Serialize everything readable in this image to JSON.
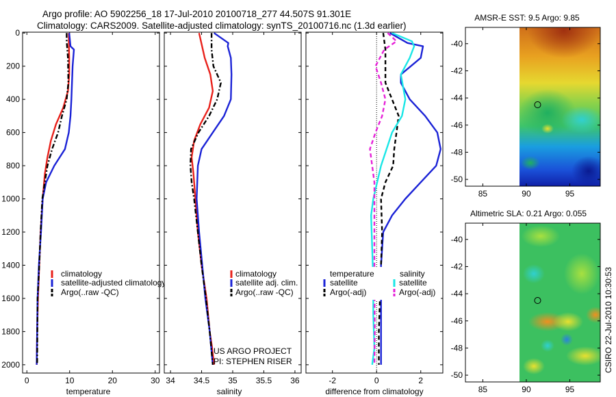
{
  "header": {
    "line1": "Argo profile: AO 5902256_18 17-Jul-2010 20100718_277 44.507S 91.301E",
    "line2": "Climatology: CARS2009. Satellite-adjusted climatology: synTS_20100716.nc (1.3d earlier)"
  },
  "footer": {
    "project": "US ARGO PROJECT",
    "pi": "PI: STEPHEN RISER",
    "stamp": "CSIRO 22-Jul-2010 10:30:53"
  },
  "colors": {
    "climatology": "#e8201a",
    "satellite": "#1a22d6",
    "argo": "#000000",
    "sat_diff_sal": "#19e6e6",
    "argo_diff_sal": "#e620d8"
  },
  "chart_data": [
    {
      "type": "line",
      "id": "temperature",
      "xlabel": "temperature",
      "ylabel": "",
      "xlim": [
        -1,
        31
      ],
      "ylim": [
        2050,
        -5
      ],
      "xticks": [
        0,
        10,
        20,
        30
      ],
      "xtick_labels": [
        "0",
        "10",
        "20",
        "30"
      ],
      "yticks": [
        0,
        200,
        400,
        600,
        800,
        1000,
        1200,
        1400,
        1600,
        1800,
        2000
      ],
      "ytick_labels": [
        "0",
        "200",
        "400",
        "600",
        "800",
        "1000",
        "1200",
        "1400",
        "1600",
        "1800",
        "2000"
      ],
      "legend": [
        "climatology",
        "satellite-adjusted climatology",
        "Argo(..raw -QC)"
      ],
      "series": [
        {
          "name": "climatology",
          "style": "solid",
          "x": [
            9.8,
            9.8,
            9.9,
            9.9,
            9.6,
            8.5,
            6.8,
            5.6,
            4.8,
            4.2,
            3.7,
            3.2,
            2.9,
            2.6,
            2.4,
            2.3
          ],
          "y": [
            0,
            50,
            150,
            250,
            350,
            450,
            550,
            650,
            750,
            850,
            1000,
            1200,
            1400,
            1600,
            1800,
            2000
          ]
        },
        {
          "name": "satellite-adjusted climatology",
          "style": "solid",
          "x": [
            9.9,
            10.2,
            11.0,
            10.7,
            10.4,
            10.2,
            9.8,
            8.9,
            6.4,
            4.5,
            3.7,
            3.3,
            2.8,
            2.5,
            2.3
          ],
          "y": [
            0,
            80,
            100,
            200,
            400,
            500,
            600,
            700,
            800,
            900,
            1000,
            1200,
            1400,
            1600,
            2000
          ]
        },
        {
          "name": "Argo(..raw -QC)",
          "style": "dashdot",
          "x": [
            9.3,
            9.3,
            9.6,
            9.7,
            9.3,
            8.2,
            7.3,
            5.9,
            4.8,
            4.2,
            3.6,
            3.2,
            2.9,
            2.5,
            2.4
          ],
          "y": [
            0,
            50,
            150,
            300,
            400,
            500,
            600,
            700,
            800,
            900,
            1000,
            1200,
            1400,
            1600,
            2000
          ]
        }
      ]
    },
    {
      "type": "line",
      "id": "salinity",
      "xlabel": "salinity",
      "ylabel": "",
      "xlim": [
        33.9,
        36.1
      ],
      "ylim": [
        2050,
        -5
      ],
      "xticks": [
        34,
        34.5,
        35,
        35.5,
        36
      ],
      "xtick_labels": [
        "34",
        "34.5",
        "35",
        "35.5",
        "36"
      ],
      "legend": [
        "climatology",
        "satellite adj. clim.",
        "Argo(..raw -QC)"
      ],
      "series": [
        {
          "name": "climatology",
          "style": "solid",
          "x": [
            34.46,
            34.49,
            34.55,
            34.64,
            34.68,
            34.62,
            34.48,
            34.38,
            34.34,
            34.37,
            34.4,
            34.44,
            34.5,
            34.58,
            34.63,
            34.67,
            34.7
          ],
          "y": [
            0,
            50,
            150,
            250,
            350,
            450,
            550,
            650,
            750,
            850,
            1000,
            1200,
            1400,
            1600,
            1800,
            1900,
            2000
          ]
        },
        {
          "name": "satellite adj. clim.",
          "style": "solid",
          "x": [
            34.7,
            34.93,
            34.92,
            34.97,
            34.98,
            34.97,
            34.86,
            34.68,
            34.5,
            34.44,
            34.42,
            34.46,
            34.51,
            34.56,
            34.63,
            34.68
          ],
          "y": [
            0,
            60,
            80,
            150,
            250,
            400,
            500,
            600,
            700,
            800,
            1000,
            1200,
            1400,
            1600,
            1800,
            2000
          ]
        },
        {
          "name": "Argo(..raw -QC)",
          "style": "dashdot",
          "x": [
            34.66,
            34.66,
            34.69,
            34.81,
            34.75,
            34.62,
            34.45,
            34.33,
            34.32,
            34.34,
            34.38,
            34.44,
            34.5,
            34.57,
            34.63,
            34.68
          ],
          "y": [
            0,
            100,
            200,
            300,
            400,
            500,
            600,
            700,
            800,
            900,
            1000,
            1200,
            1400,
            1600,
            1800,
            2000
          ]
        }
      ]
    },
    {
      "type": "line",
      "id": "difference",
      "xlabel": "difference from climatology",
      "ylabel": "",
      "xlim": [
        -3.2,
        3.0
      ],
      "ylim": [
        2050,
        -5
      ],
      "xticks": [
        -2,
        0,
        2
      ],
      "xtick_labels": [
        "-2",
        "0",
        "2"
      ],
      "legend_headers": [
        "temperature",
        "salinity"
      ],
      "legend_temperature": [
        "satellite",
        "Argo(-adj)"
      ],
      "legend_salinity": [
        "satellite",
        "Argo(-adj)"
      ],
      "series": [
        {
          "name": "temperature satellite",
          "style": "solid",
          "x": [
            0.6,
            1.4,
            2.1,
            2.0,
            1.1,
            1.1,
            1.5,
            2.2,
            2.75,
            2.9,
            2.7,
            2.0,
            1.3,
            0.7,
            0.3,
            0.2,
            0.2,
            0.2,
            0.2
          ],
          "y": [
            0,
            60,
            80,
            150,
            250,
            300,
            400,
            500,
            600,
            700,
            800,
            900,
            1000,
            1100,
            1200,
            1400,
            1600,
            1800,
            2000
          ]
        },
        {
          "name": "temperature Argo(-adj)",
          "style": "dashed",
          "x": [
            0.3,
            0.4,
            0.4,
            1.0,
            0.9,
            0.8,
            0.75,
            0.4,
            0.2,
            0.25,
            0.2,
            0.15,
            0.1,
            0.1,
            0.1
          ],
          "y": [
            0,
            100,
            300,
            500,
            600,
            700,
            800,
            900,
            1000,
            1200,
            1400,
            1600,
            1800,
            1900,
            2000
          ]
        },
        {
          "name": "salinity satellite",
          "style": "solid",
          "x": [
            0.7,
            1.6,
            1.7,
            1.5,
            1.1,
            1.3,
            1.15,
            0.7,
            0.2,
            -0.15,
            -0.25,
            -0.2,
            -0.15,
            -0.15,
            -0.1,
            -0.2
          ],
          "y": [
            0,
            50,
            80,
            150,
            250,
            400,
            500,
            600,
            800,
            1000,
            1100,
            1300,
            1500,
            1700,
            1900,
            2000
          ]
        },
        {
          "name": "salinity Argo(-adj)",
          "style": "dashed",
          "x": [
            0.5,
            0.9,
            0.35,
            -0.05,
            0.2,
            0.4,
            0.25,
            -0.05,
            -0.3,
            -0.1,
            -0.1,
            -0.1,
            -0.08,
            -0.1
          ],
          "y": [
            0,
            50,
            100,
            200,
            300,
            400,
            500,
            600,
            700,
            900,
            1200,
            1500,
            1800,
            2000
          ]
        }
      ]
    },
    {
      "type": "heatmap",
      "id": "sst-map",
      "title": "AMSR-E SST: 9.5 Argo: 9.85",
      "xlim": [
        83,
        98.5
      ],
      "ylim": [
        -50.5,
        -38.8
      ],
      "xticks": [
        85,
        90,
        95
      ],
      "xtick_labels": [
        "85",
        "90",
        "95"
      ],
      "yticks": [
        -40,
        -42,
        -44,
        -46,
        -48,
        -50
      ],
      "ytick_labels": [
        "-40",
        "-42",
        "-44",
        "-46",
        "-48",
        "-50"
      ],
      "marker": {
        "lon": 91.3,
        "lat": -44.5
      }
    },
    {
      "type": "heatmap",
      "id": "sla-map",
      "title": "Altimetric SLA: 0.21 Argo: 0.055",
      "xlim": [
        83,
        98.5
      ],
      "ylim": [
        -50.5,
        -38.8
      ],
      "xticks": [
        85,
        90,
        95
      ],
      "xtick_labels": [
        "85",
        "90",
        "95"
      ],
      "yticks": [
        -40,
        -42,
        -44,
        -46,
        -48,
        -50
      ],
      "ytick_labels": [
        "-40",
        "-42",
        "-44",
        "-46",
        "-48",
        "-50"
      ],
      "marker": {
        "lon": 91.3,
        "lat": -44.5
      }
    }
  ]
}
